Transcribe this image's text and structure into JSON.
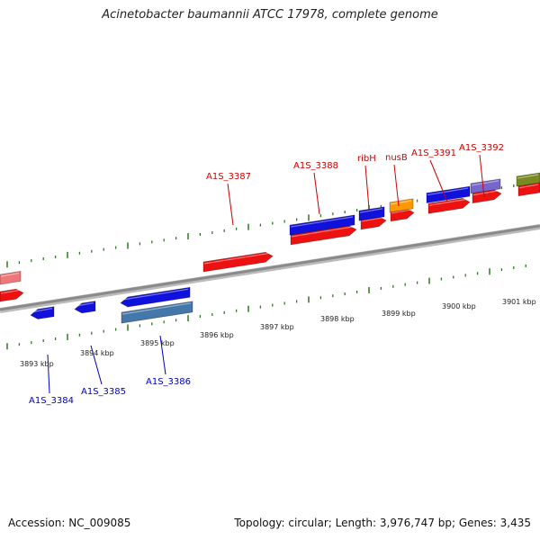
{
  "title": "Acinetobacter baumannii ATCC 17978, complete genome",
  "footer": {
    "accession": "Accession: NC_009085",
    "summary": "Topology: circular; Length: 3,976,747 bp; Genes: 3,435"
  },
  "colors": {
    "backbone": "#8a8a8a",
    "tick": "#2a7a1e",
    "forward_label": "#cc0000",
    "reverse_label": "#0000bb",
    "cds": "#ee1111",
    "gene_blue": "#1111dd",
    "gene_orange": "#ff9900",
    "gene_purple": "#7766cc",
    "gene_olive": "#7a8a22",
    "gene_pink": "#ee7777",
    "gene_steel": "#4477aa"
  },
  "tick_labels": [
    "3893 kbp",
    "3894 kbp",
    "3895 kbp",
    "3896 kbp",
    "3897 kbp",
    "3898 kbp",
    "3899 kbp",
    "3900 kbp",
    "3901 kbp"
  ],
  "forward_labels": [
    "A1S_3387",
    "A1S_3388",
    "ribH",
    "nusB",
    "A1S_3391",
    "A1S_3392"
  ],
  "reverse_labels": [
    "A1S_3384",
    "A1S_3385",
    "A1S_3386"
  ]
}
